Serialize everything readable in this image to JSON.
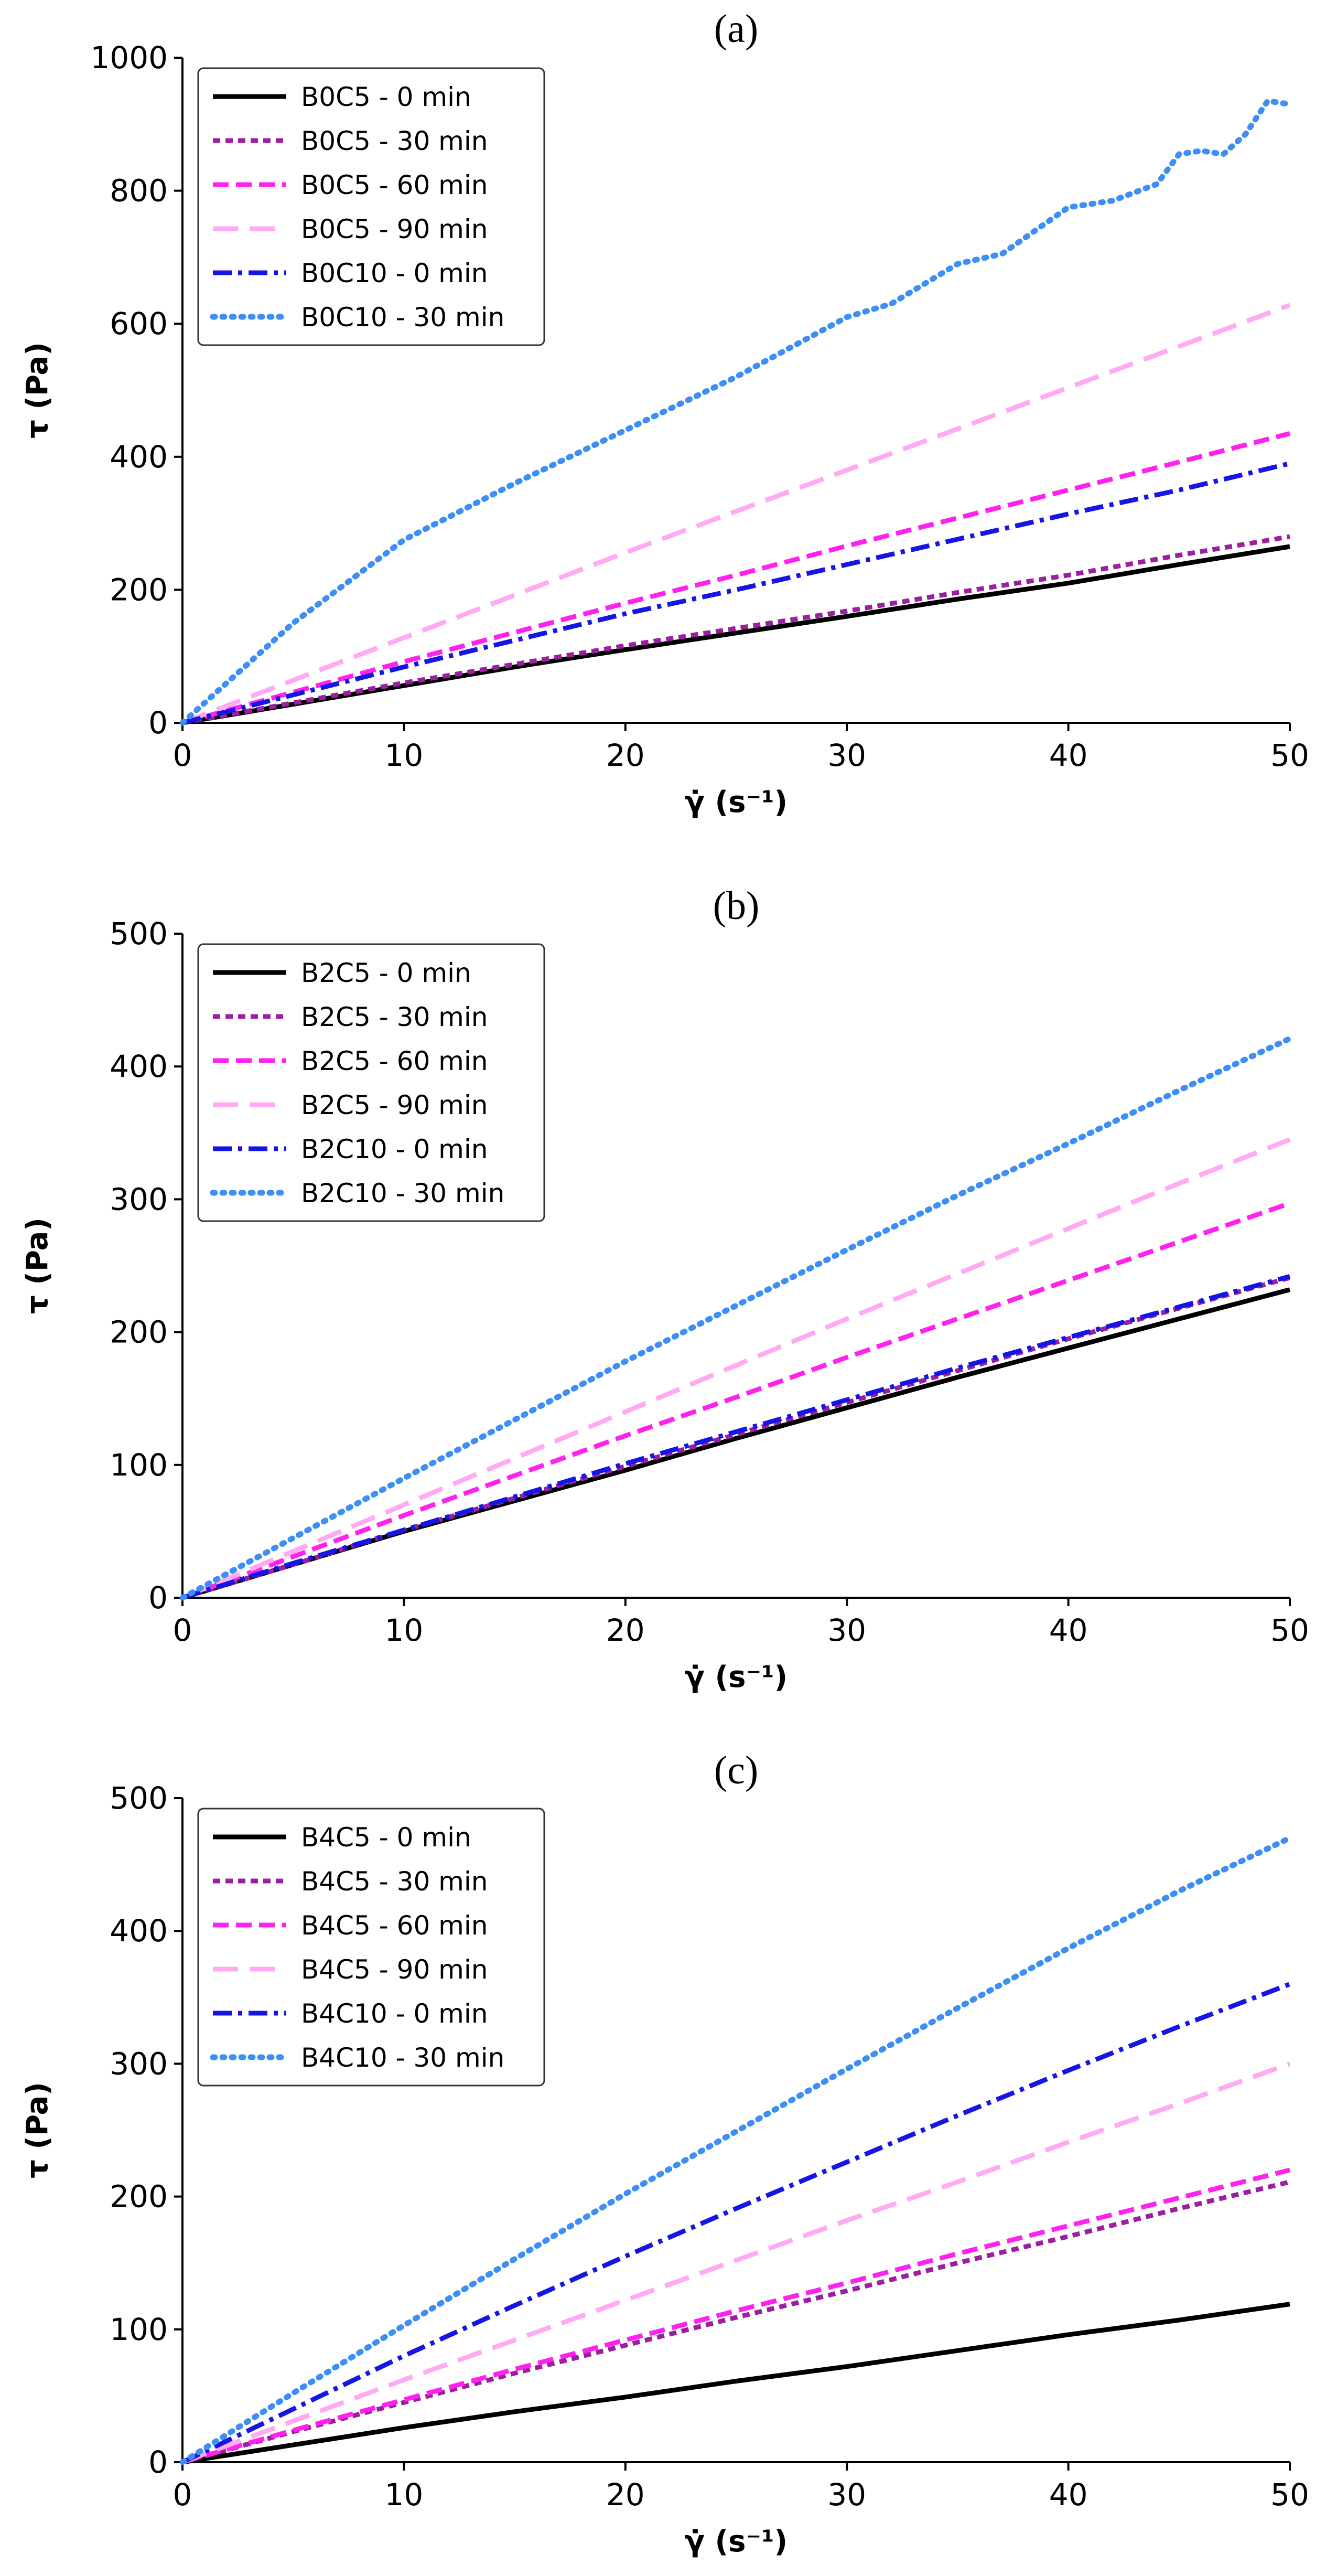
{
  "chart_data": [
    {
      "type": "line",
      "title": "(a)",
      "xlabel": "γ̇ (s⁻¹)",
      "ylabel": "τ (Pa)",
      "xlim": [
        0,
        50
      ],
      "ylim": [
        0,
        1000
      ],
      "xticks": [
        0,
        10,
        20,
        30,
        40,
        50
      ],
      "yticks": [
        0,
        200,
        400,
        600,
        800,
        1000
      ],
      "grid": false,
      "legend_position": "top-left",
      "series": [
        {
          "name": "B0C5 - 0 min",
          "color": "#000000",
          "style": "solid",
          "x": [
            0,
            5,
            10,
            15,
            20,
            25,
            30,
            35,
            40,
            45,
            50
          ],
          "y": [
            0,
            28,
            56,
            84,
            110,
            135,
            160,
            186,
            210,
            238,
            265
          ]
        },
        {
          "name": "B0C5 - 30 min",
          "color": "#9b1fa0",
          "style": "dashed-short",
          "x": [
            0,
            5,
            10,
            15,
            20,
            25,
            30,
            35,
            40,
            45,
            50
          ],
          "y": [
            0,
            30,
            60,
            88,
            116,
            142,
            168,
            196,
            222,
            252,
            280
          ]
        },
        {
          "name": "B0C5 - 60 min",
          "color": "#ff22ee",
          "style": "dashed",
          "x": [
            0,
            5,
            10,
            15,
            20,
            25,
            30,
            35,
            40,
            45,
            50
          ],
          "y": [
            0,
            46,
            92,
            136,
            180,
            222,
            266,
            308,
            350,
            392,
            435
          ]
        },
        {
          "name": "B0C5 - 90 min",
          "color": "#ffaaf2",
          "style": "dashed-long",
          "x": [
            0,
            5,
            10,
            15,
            20,
            25,
            30,
            35,
            40,
            45,
            50
          ],
          "y": [
            0,
            64,
            128,
            192,
            256,
            318,
            380,
            442,
            504,
            566,
            628
          ]
        },
        {
          "name": "B0C10 - 0 min",
          "color": "#1515e6",
          "style": "dashdot",
          "x": [
            0,
            5,
            10,
            15,
            20,
            25,
            30,
            35,
            40,
            45,
            50
          ],
          "y": [
            0,
            42,
            84,
            124,
            164,
            200,
            238,
            276,
            314,
            350,
            390
          ]
        },
        {
          "name": "B0C10 - 30 min",
          "color": "#3d8ef5",
          "style": "dotted",
          "x": [
            0,
            5,
            10,
            15,
            20,
            25,
            30,
            32,
            35,
            37,
            40,
            42,
            44,
            45,
            46,
            47,
            48,
            49,
            50
          ],
          "y": [
            0,
            150,
            275,
            360,
            440,
            520,
            610,
            630,
            690,
            705,
            775,
            785,
            810,
            855,
            860,
            855,
            885,
            935,
            930
          ]
        }
      ]
    },
    {
      "type": "line",
      "title": "(b)",
      "xlabel": "γ̇ (s⁻¹)",
      "ylabel": "τ (Pa)",
      "xlim": [
        0,
        50
      ],
      "ylim": [
        0,
        500
      ],
      "xticks": [
        0,
        10,
        20,
        30,
        40,
        50
      ],
      "yticks": [
        0,
        100,
        200,
        300,
        400,
        500
      ],
      "grid": false,
      "legend_position": "top-left",
      "series": [
        {
          "name": "B2C5 - 0 min",
          "color": "#000000",
          "style": "solid",
          "x": [
            0,
            5,
            10,
            15,
            20,
            25,
            30,
            35,
            40,
            45,
            50
          ],
          "y": [
            0,
            25,
            50,
            73,
            96,
            120,
            143,
            166,
            188,
            210,
            232
          ]
        },
        {
          "name": "B2C5 - 30 min",
          "color": "#9b1fa0",
          "style": "dashed-short",
          "x": [
            0,
            5,
            10,
            15,
            20,
            25,
            30,
            35,
            40,
            45,
            50
          ],
          "y": [
            0,
            25,
            51,
            75,
            99,
            123,
            147,
            171,
            195,
            218,
            241
          ]
        },
        {
          "name": "B2C5 - 60 min",
          "color": "#ff22ee",
          "style": "dashed",
          "x": [
            0,
            5,
            10,
            15,
            20,
            25,
            30,
            35,
            40,
            45,
            50
          ],
          "y": [
            0,
            31,
            62,
            92,
            122,
            151,
            181,
            210,
            239,
            268,
            297
          ]
        },
        {
          "name": "B2C5 - 90 min",
          "color": "#ffaaf2",
          "style": "dashed-long",
          "x": [
            0,
            5,
            10,
            15,
            20,
            25,
            30,
            35,
            40,
            45,
            50
          ],
          "y": [
            0,
            35,
            70,
            105,
            140,
            175,
            210,
            244,
            278,
            312,
            345
          ]
        },
        {
          "name": "B2C10 - 0 min",
          "color": "#1515e6",
          "style": "dashdot",
          "x": [
            0,
            5,
            10,
            15,
            20,
            25,
            30,
            35,
            40,
            45,
            50
          ],
          "y": [
            0,
            26,
            51,
            76,
            101,
            125,
            149,
            173,
            196,
            219,
            242
          ]
        },
        {
          "name": "B2C10 - 30 min",
          "color": "#3d8ef5",
          "style": "dotted",
          "x": [
            0,
            5,
            10,
            15,
            20,
            25,
            30,
            35,
            40,
            45,
            50
          ],
          "y": [
            0,
            45,
            90,
            134,
            178,
            220,
            262,
            303,
            342,
            382,
            421
          ]
        }
      ]
    },
    {
      "type": "line",
      "title": "(c)",
      "xlabel": "γ̇ (s⁻¹)",
      "ylabel": "τ (Pa)",
      "xlim": [
        0,
        50
      ],
      "ylim": [
        0,
        500
      ],
      "xticks": [
        0,
        10,
        20,
        30,
        40,
        50
      ],
      "yticks": [
        0,
        100,
        200,
        300,
        400,
        500
      ],
      "grid": false,
      "legend_position": "top-left",
      "series": [
        {
          "name": "B4C5 - 0 min",
          "color": "#000000",
          "style": "solid",
          "x": [
            0,
            5,
            10,
            15,
            20,
            25,
            30,
            35,
            40,
            45,
            50
          ],
          "y": [
            0,
            13,
            26,
            38,
            49,
            61,
            72,
            84,
            96,
            107,
            119
          ]
        },
        {
          "name": "B4C5 - 30 min",
          "color": "#9b1fa0",
          "style": "dashed-short",
          "x": [
            0,
            5,
            10,
            15,
            20,
            25,
            30,
            35,
            40,
            45,
            50
          ],
          "y": [
            0,
            23,
            45,
            67,
            88,
            109,
            129,
            150,
            170,
            191,
            211
          ]
        },
        {
          "name": "B4C5 - 60 min",
          "color": "#ff22ee",
          "style": "dashed",
          "x": [
            0,
            5,
            10,
            15,
            20,
            25,
            30,
            35,
            40,
            45,
            50
          ],
          "y": [
            0,
            24,
            47,
            70,
            92,
            114,
            135,
            157,
            178,
            199,
            220
          ]
        },
        {
          "name": "B4C5 - 90 min",
          "color": "#ffaaf2",
          "style": "dashed-long",
          "x": [
            0,
            5,
            10,
            15,
            20,
            25,
            30,
            35,
            40,
            45,
            50
          ],
          "y": [
            0,
            31,
            62,
            92,
            122,
            152,
            182,
            211,
            241,
            270,
            300
          ]
        },
        {
          "name": "B4C10 - 0 min",
          "color": "#1515e6",
          "style": "dashdot",
          "x": [
            0,
            5,
            10,
            15,
            20,
            25,
            30,
            35,
            40,
            45,
            50
          ],
          "y": [
            0,
            40,
            80,
            118,
            155,
            191,
            226,
            261,
            295,
            328,
            360
          ]
        },
        {
          "name": "B4C10 - 30 min",
          "color": "#3d8ef5",
          "style": "dotted",
          "x": [
            0,
            5,
            10,
            15,
            20,
            25,
            30,
            35,
            40,
            45,
            50
          ],
          "y": [
            0,
            52,
            103,
            153,
            202,
            249,
            296,
            342,
            387,
            430,
            470
          ]
        }
      ]
    }
  ]
}
